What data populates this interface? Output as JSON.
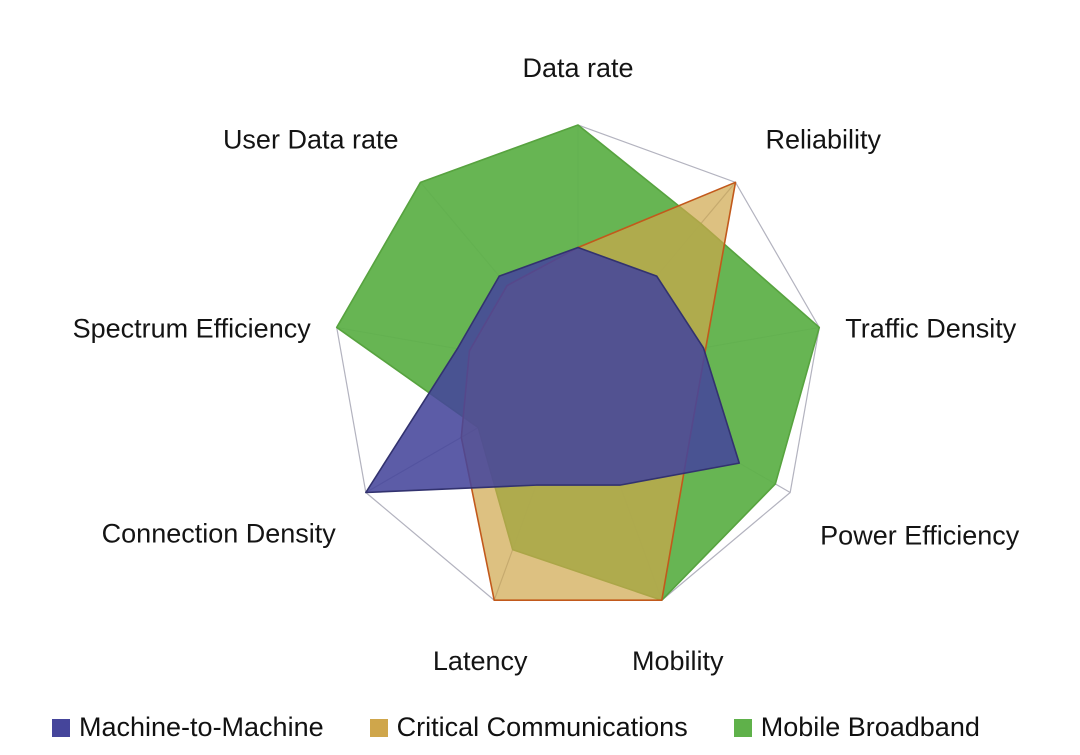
{
  "chart_data": {
    "type": "radar",
    "title": "",
    "categories": [
      "Data rate",
      "Reliability",
      "Traffic Density",
      "Power Efficiency",
      "Mobility",
      "Latency",
      "Connection Density",
      "Spectrum Efficiency",
      "User Data rate"
    ],
    "axis_range": {
      "min": 0,
      "max": 1
    },
    "series": [
      {
        "name": "Machine-to-Machine",
        "color": "#45459B",
        "stroke": "#32326F",
        "fill_opacity": 0.88,
        "values": [
          0.5,
          0.5,
          0.52,
          0.76,
          0.5,
          0.5,
          1.0,
          0.5,
          0.5
        ]
      },
      {
        "name": "Critical Communications",
        "color": "#CFA64B",
        "stroke": "#C2591B",
        "fill_opacity": 0.7,
        "values": [
          0.5,
          1.0,
          0.53,
          0.53,
          1.0,
          1.0,
          0.55,
          0.45,
          0.45
        ]
      },
      {
        "name": "Mobile Broadband",
        "color": "#5FB14A",
        "stroke": "#57A33F",
        "fill_opacity": 0.95,
        "values": [
          1.0,
          0.78,
          1.0,
          0.93,
          1.0,
          0.78,
          0.47,
          1.0,
          1.0
        ]
      }
    ],
    "grid": {
      "color": "#B3B3BF",
      "rings": 1,
      "spokes": true,
      "center_marker": "star"
    },
    "legend": {
      "position": "bottom-left"
    }
  }
}
